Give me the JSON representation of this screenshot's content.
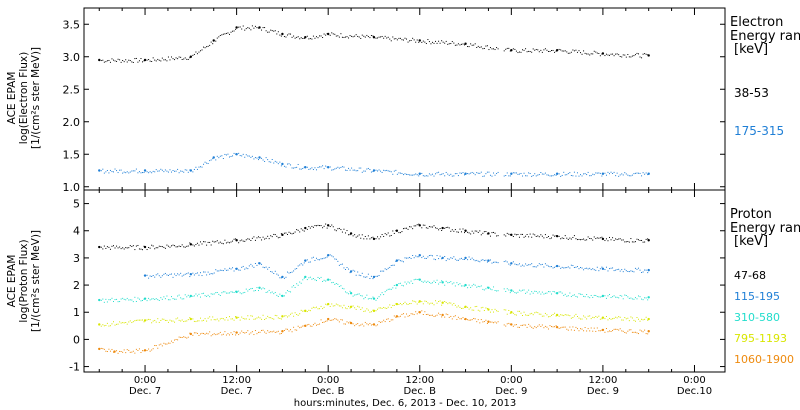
{
  "chart_data": [
    {
      "type": "scatter",
      "panel": "electron",
      "ylabel_lines": [
        "ACE EPAM",
        "log(Electron Flux)",
        "[1/(cm²s ster MeV)]"
      ],
      "ylim": [
        0.95,
        3.75
      ],
      "yticks": [
        1.0,
        1.5,
        2.0,
        2.5,
        3.0,
        3.5
      ],
      "ytick_labels": [
        "1.0",
        "1.5",
        "2.0",
        "2.5",
        "3.0",
        "3.5"
      ],
      "legend_title_lines": [
        "Electron",
        "Energy ranges",
        "[keV]"
      ],
      "series": [
        {
          "name": "38-53",
          "color": "#000000",
          "x": [
            -6,
            0,
            6,
            9,
            12,
            15,
            18,
            21,
            24,
            30,
            36,
            42,
            48,
            54,
            60,
            66
          ],
          "y": [
            2.95,
            2.95,
            3.0,
            3.25,
            3.45,
            3.45,
            3.35,
            3.3,
            3.35,
            3.3,
            3.25,
            3.2,
            3.1,
            3.1,
            3.05,
            3.02
          ]
        },
        {
          "name": "175-315",
          "color": "#1f7fd6",
          "x": [
            -6,
            0,
            6,
            9,
            12,
            15,
            18,
            21,
            24,
            30,
            36,
            42,
            48,
            54,
            60,
            66
          ],
          "y": [
            1.25,
            1.25,
            1.25,
            1.45,
            1.5,
            1.45,
            1.35,
            1.3,
            1.3,
            1.25,
            1.2,
            1.2,
            1.2,
            1.2,
            1.2,
            1.2
          ]
        }
      ]
    },
    {
      "type": "scatter",
      "panel": "proton",
      "ylabel_lines": [
        "ACE EPAM",
        "log(Proton Flux)",
        "[1/(cm²s ster MeV)]"
      ],
      "ylim": [
        -1.2,
        5.5
      ],
      "yticks": [
        -1,
        0,
        1,
        2,
        3,
        4,
        5
      ],
      "ytick_labels": [
        "-1",
        "0",
        "1",
        "2",
        "3",
        "4",
        "5"
      ],
      "legend_title_lines": [
        "Proton",
        "Energy ranges",
        "[keV]"
      ],
      "series": [
        {
          "name": "47-68",
          "color": "#000000",
          "x": [
            -6,
            0,
            6,
            12,
            18,
            21,
            24,
            27,
            30,
            33,
            36,
            39,
            42,
            45,
            48,
            54,
            60,
            66
          ],
          "y": [
            3.4,
            3.4,
            3.5,
            3.65,
            3.85,
            4.1,
            4.2,
            3.9,
            3.7,
            4.0,
            4.2,
            4.1,
            4.0,
            3.9,
            3.85,
            3.8,
            3.7,
            3.65
          ]
        },
        {
          "name": "115-195",
          "color": "#1f7fd6",
          "x": [
            0,
            6,
            12,
            15,
            18,
            21,
            24,
            27,
            30,
            33,
            36,
            39,
            42,
            45,
            48,
            54,
            60,
            66
          ],
          "y": [
            2.35,
            2.4,
            2.6,
            2.8,
            2.3,
            2.9,
            3.1,
            2.5,
            2.3,
            2.9,
            3.1,
            3.0,
            3.0,
            2.9,
            2.8,
            2.7,
            2.6,
            2.55
          ]
        },
        {
          "name": "310-580",
          "color": "#22ddcc",
          "x": [
            -6,
            0,
            6,
            12,
            15,
            18,
            21,
            24,
            27,
            30,
            33,
            36,
            39,
            42,
            45,
            48,
            54,
            60,
            66
          ],
          "y": [
            1.45,
            1.5,
            1.6,
            1.75,
            1.9,
            1.6,
            2.3,
            2.2,
            1.7,
            1.5,
            2.0,
            2.2,
            2.1,
            2.0,
            1.9,
            1.8,
            1.7,
            1.6,
            1.55
          ]
        },
        {
          "name": "795-1193",
          "color": "#d8e600",
          "x": [
            -6,
            0,
            6,
            12,
            18,
            21,
            24,
            27,
            30,
            33,
            36,
            39,
            42,
            45,
            48,
            54,
            60,
            66
          ],
          "y": [
            0.55,
            0.7,
            0.75,
            0.8,
            0.85,
            1.05,
            1.3,
            1.2,
            1.05,
            1.3,
            1.4,
            1.35,
            1.2,
            1.1,
            1.0,
            0.9,
            0.8,
            0.75
          ]
        },
        {
          "name": "1060-1900",
          "color": "#ee8a0e",
          "x": [
            -6,
            -4,
            0,
            6,
            12,
            18,
            21,
            24,
            27,
            30,
            33,
            36,
            39,
            42,
            45,
            48,
            54,
            60,
            66
          ],
          "y": [
            -0.35,
            -0.45,
            -0.4,
            0.2,
            0.25,
            0.3,
            0.5,
            0.75,
            0.6,
            0.55,
            0.85,
            1.0,
            0.9,
            0.75,
            0.65,
            0.55,
            0.45,
            0.35,
            0.3
          ]
        }
      ]
    }
  ],
  "x_axis": {
    "xlim": [
      -8,
      76
    ],
    "ticks": [
      0,
      12,
      24,
      36,
      48,
      60,
      72
    ],
    "tick_labels": [
      "0:00",
      "12:00",
      "0:00",
      "12:00",
      "0:00",
      "12:00",
      "0:00"
    ],
    "date_labels": [
      "Dec. 7",
      "Dec. 7",
      "Dec. B",
      "Dec. B",
      "Dec. 9",
      "Dec. 9",
      "Dec.10"
    ],
    "xlabel": "hours:minutes, Dec. 6, 2013 - Dec. 10, 2013"
  }
}
